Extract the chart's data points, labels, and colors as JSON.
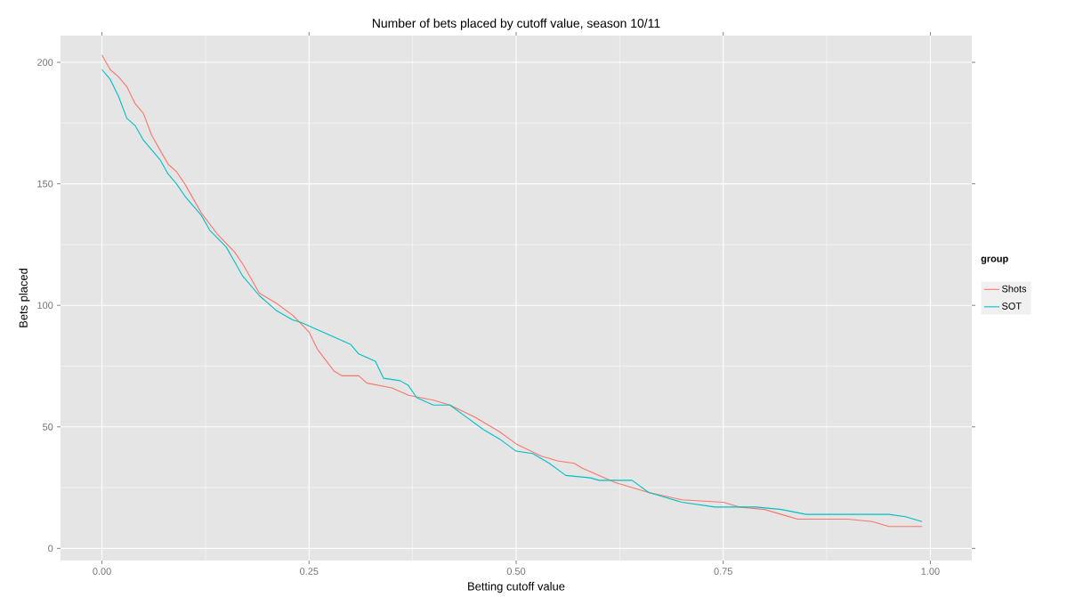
{
  "chart_data": {
    "type": "line",
    "title": "Number of bets placed by cutoff value, season 10/11",
    "xlabel": "Betting cutoff value",
    "ylabel": "Bets placed",
    "legend_title": "group",
    "legend": "right",
    "grid": true,
    "line_style": "solid",
    "marker": "none",
    "xlim": [
      -0.05,
      1.05
    ],
    "ylim": [
      -5,
      211
    ],
    "xticks": [
      {
        "value": 0,
        "label": "0.00"
      },
      {
        "value": 0.25,
        "label": "0.25"
      },
      {
        "value": 0.5,
        "label": "0.50"
      },
      {
        "value": 0.75,
        "label": "0.75"
      },
      {
        "value": 1,
        "label": "1.00"
      }
    ],
    "yticks": [
      0,
      50,
      100,
      150,
      200
    ],
    "series": [
      {
        "name": "Shots",
        "color": "#f8766d",
        "x": [
          0,
          0.01,
          0.02,
          0.03,
          0.04,
          0.05,
          0.06,
          0.07,
          0.08,
          0.09,
          0.1,
          0.12,
          0.14,
          0.16,
          0.17,
          0.19,
          0.21,
          0.23,
          0.25,
          0.26,
          0.28,
          0.29,
          0.31,
          0.32,
          0.35,
          0.37,
          0.4,
          0.42,
          0.45,
          0.48,
          0.5,
          0.53,
          0.55,
          0.57,
          0.58,
          0.6,
          0.62,
          0.64,
          0.66,
          0.7,
          0.75,
          0.77,
          0.8,
          0.82,
          0.84,
          0.9,
          0.93,
          0.95,
          0.99
        ],
        "values": [
          203,
          197,
          194,
          190,
          183,
          179,
          170,
          164,
          158,
          155,
          150,
          138,
          129,
          122,
          117,
          105,
          101,
          96,
          89,
          82,
          73,
          71,
          71,
          68,
          66,
          63,
          61,
          59,
          54,
          48,
          43,
          38,
          36,
          35,
          33,
          30,
          27,
          25,
          23,
          20,
          19,
          17,
          16,
          14,
          12,
          12,
          11,
          9,
          9
        ]
      },
      {
        "name": "SOT",
        "color": "#00bfc4",
        "x": [
          0,
          0.01,
          0.02,
          0.03,
          0.04,
          0.05,
          0.07,
          0.08,
          0.09,
          0.1,
          0.12,
          0.13,
          0.15,
          0.16,
          0.17,
          0.19,
          0.21,
          0.23,
          0.24,
          0.26,
          0.28,
          0.3,
          0.31,
          0.33,
          0.34,
          0.36,
          0.37,
          0.38,
          0.4,
          0.42,
          0.44,
          0.46,
          0.48,
          0.5,
          0.52,
          0.54,
          0.56,
          0.59,
          0.6,
          0.64,
          0.66,
          0.68,
          0.7,
          0.74,
          0.79,
          0.82,
          0.85,
          0.95,
          0.97,
          0.99
        ],
        "values": [
          197,
          193,
          186,
          177,
          174,
          168,
          160,
          154,
          150,
          145,
          137,
          131,
          124,
          118,
          112,
          104,
          98,
          94,
          93,
          90,
          87,
          84,
          80,
          77,
          70,
          69,
          67,
          62,
          59,
          59,
          54,
          49,
          45,
          40,
          39,
          35,
          30,
          29,
          28,
          28,
          23,
          21,
          19,
          17,
          17,
          16,
          14,
          14,
          13,
          11
        ]
      }
    ]
  }
}
